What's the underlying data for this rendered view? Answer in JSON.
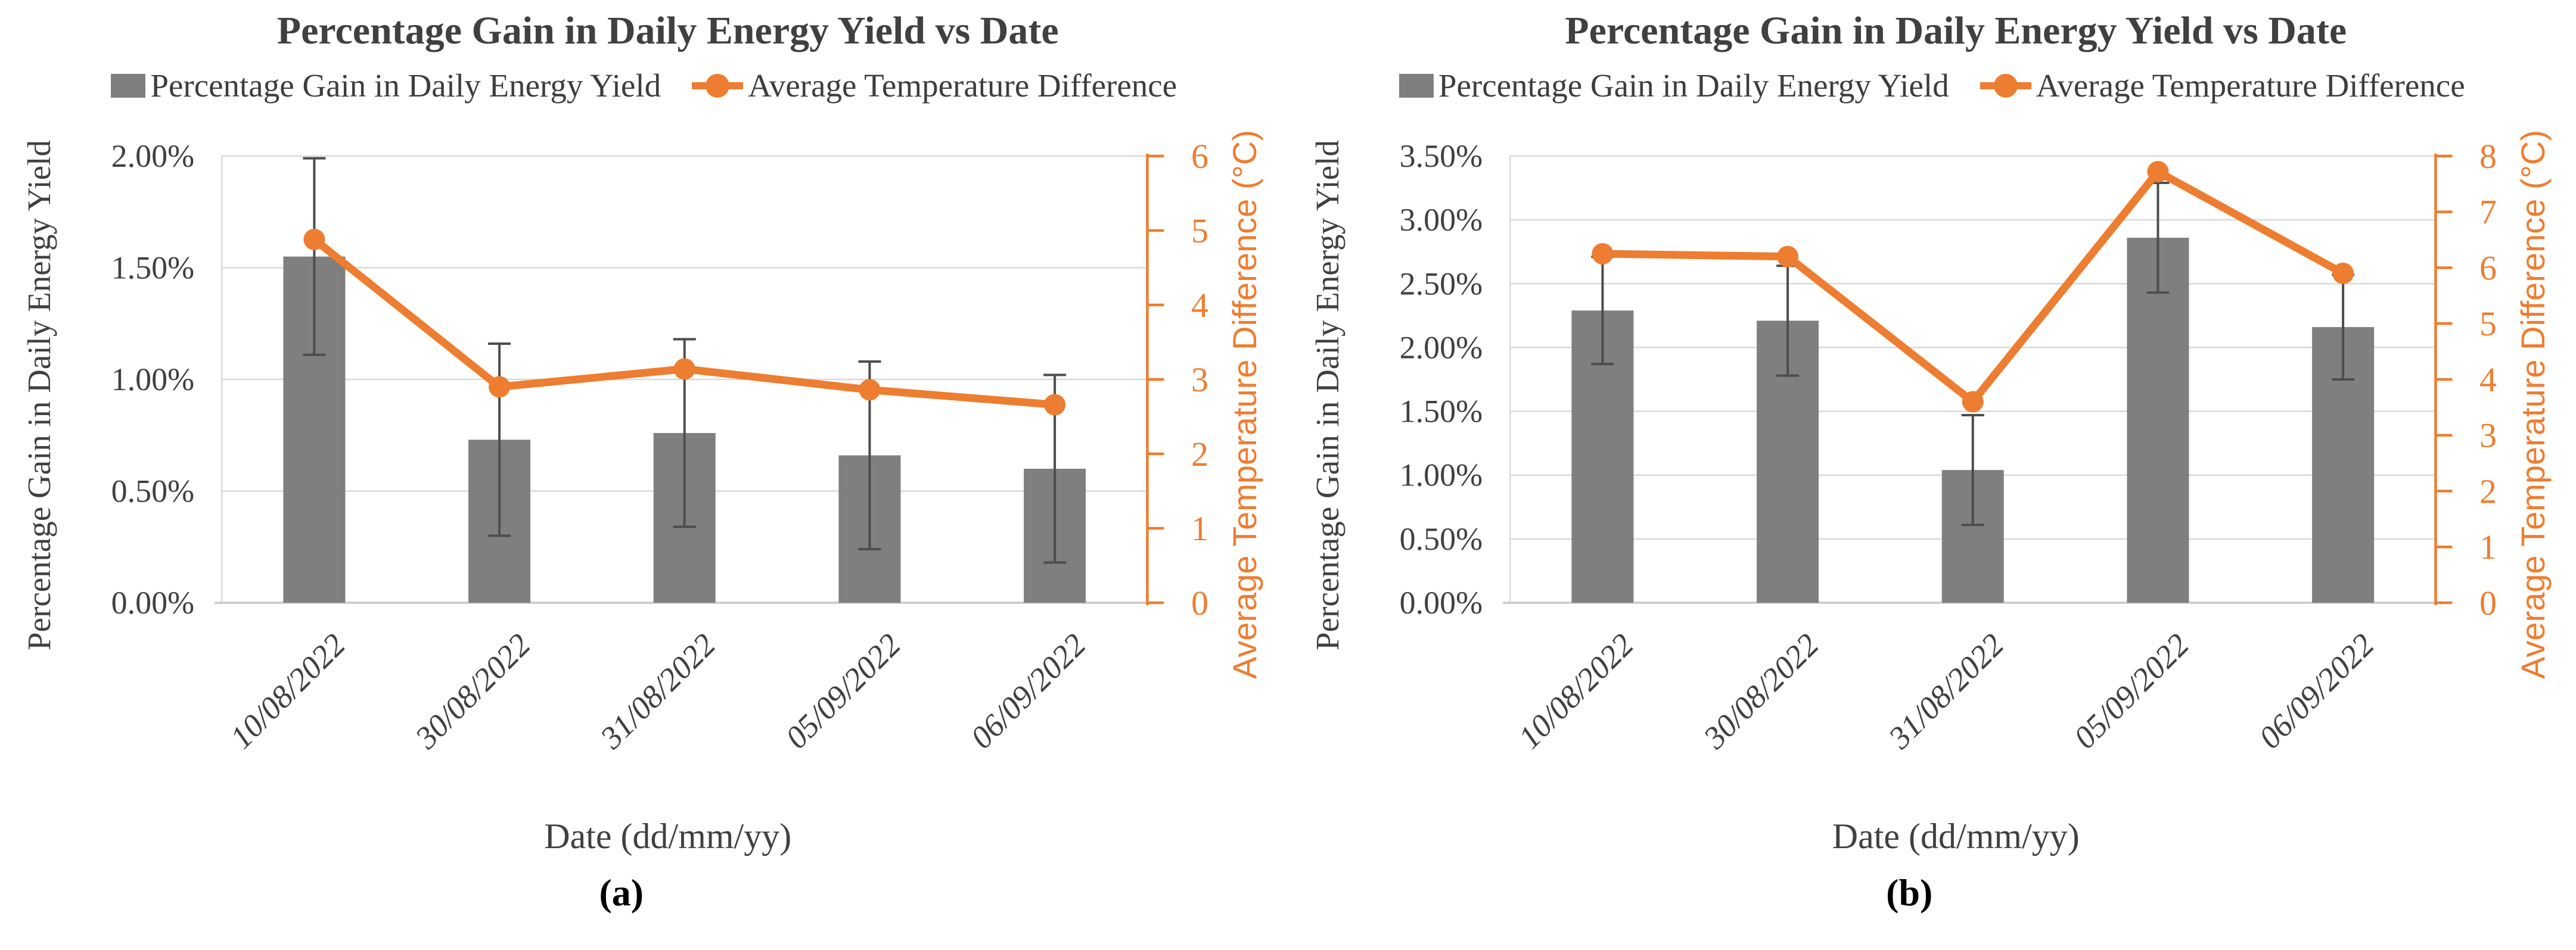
{
  "colors": {
    "bar": "#7F7F7F",
    "line": "#ED7D31",
    "grid": "#D9D9D9",
    "axis_line": "#C9C9C9",
    "text": "#404040",
    "error_bar": "#4D4D4D",
    "caption": "#000000",
    "background": "#FFFFFF"
  },
  "chart_data": [
    {
      "type": "bar",
      "subtype": "bar-with-error-bars-plus-line-on-secondary-axis",
      "caption": "(a)",
      "title": "Percentage Gain in Daily Energy Yield vs Date",
      "legend": [
        "Percentage Gain in Daily Energy Yield",
        "Average Temperature Difference"
      ],
      "x": {
        "label": "Date (dd/mm/yy)",
        "categories": [
          "10/08/2022",
          "30/08/2022",
          "31/08/2022",
          "05/09/2022",
          "06/09/2022"
        ]
      },
      "y_left": {
        "label": "Percentage Gain in Daily Energy Yield",
        "max": 2.0,
        "step": 0.5,
        "ticks": [
          "0.00%",
          "0.50%",
          "1.00%",
          "1.50%",
          "2.00%"
        ]
      },
      "y_right": {
        "label": "Average Temperature Difference (°C)",
        "max": 6,
        "step": 1,
        "ticks": [
          "0",
          "1",
          "2",
          "3",
          "4",
          "5",
          "6"
        ]
      },
      "series": [
        {
          "name": "Percentage Gain in Daily Energy Yield",
          "kind": "bar",
          "unit": "%",
          "values": [
            1.55,
            0.73,
            0.76,
            0.66,
            0.6
          ],
          "error_bars": [
            0.44,
            0.43,
            0.42,
            0.42,
            0.42
          ]
        },
        {
          "name": "Average Temperature Difference",
          "kind": "line",
          "unit": "°C",
          "values": [
            4.88,
            2.9,
            3.14,
            2.86,
            2.66
          ]
        }
      ],
      "grid": true,
      "legend_position": "top"
    },
    {
      "type": "bar",
      "subtype": "bar-with-error-bars-plus-line-on-secondary-axis",
      "caption": "(b)",
      "title": "Percentage Gain in Daily Energy Yield vs Date",
      "legend": [
        "Percentage Gain in Daily Energy Yield",
        "Average Temperature Difference"
      ],
      "x": {
        "label": "Date (dd/mm/yy)",
        "categories": [
          "10/08/2022",
          "30/08/2022",
          "31/08/2022",
          "05/09/2022",
          "06/09/2022"
        ]
      },
      "y_left": {
        "label": "Percentage Gain in Daily Energy Yield",
        "max": 3.5,
        "step": 0.5,
        "ticks": [
          "0.00%",
          "0.50%",
          "1.00%",
          "1.50%",
          "2.00%",
          "2.50%",
          "3.00%",
          "3.50%"
        ]
      },
      "y_right": {
        "label": "Average Temperature Difference (°C)",
        "max": 8,
        "step": 1,
        "ticks": [
          "0",
          "1",
          "2",
          "3",
          "4",
          "5",
          "6",
          "7",
          "8"
        ]
      },
      "series": [
        {
          "name": "Percentage Gain in Daily Energy Yield",
          "kind": "bar",
          "unit": "%",
          "values": [
            2.29,
            2.21,
            1.04,
            2.86,
            2.16
          ],
          "error_bars": [
            0.42,
            0.43,
            0.43,
            0.43,
            0.41
          ]
        },
        {
          "name": "Average Temperature Difference",
          "kind": "line",
          "unit": "°C",
          "values": [
            6.25,
            6.2,
            3.6,
            7.72,
            5.9
          ]
        }
      ],
      "grid": true,
      "legend_position": "top"
    }
  ]
}
